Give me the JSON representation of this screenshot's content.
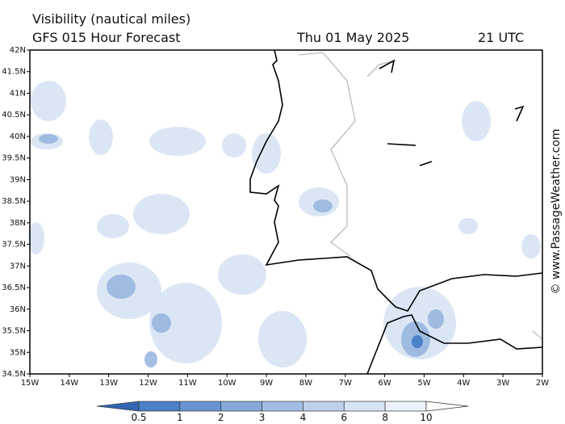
{
  "header": {
    "title": "Visibility (nautical miles)",
    "subtitle": "GFS 015 Hour Forecast",
    "date": "Thu 01 May 2025",
    "time": "21 UTC"
  },
  "map": {
    "lat_labels": [
      "42N",
      "41.5N",
      "41N",
      "40.5N",
      "40N",
      "39.5N",
      "39N",
      "38.5N",
      "38N",
      "37.5N",
      "37N",
      "36.5N",
      "36N",
      "35.5N",
      "35N",
      "34.5N"
    ],
    "lon_labels": [
      "15W",
      "14W",
      "13W",
      "12W",
      "11W",
      "10W",
      "9W",
      "8W",
      "7W",
      "6W",
      "5W",
      "4W",
      "3W",
      "2W"
    ]
  },
  "colorbar": {
    "levels": [
      0.5,
      1,
      2,
      3,
      4,
      6,
      8,
      10
    ],
    "colors": [
      "#3465b0",
      "#4a80c8",
      "#6895d2",
      "#86a9da",
      "#a2bde3",
      "#bed1ec",
      "#d7e3f3",
      "#ecf2fa",
      "#ffffff"
    ]
  },
  "watermark": "© www.PassageWeather.com"
}
